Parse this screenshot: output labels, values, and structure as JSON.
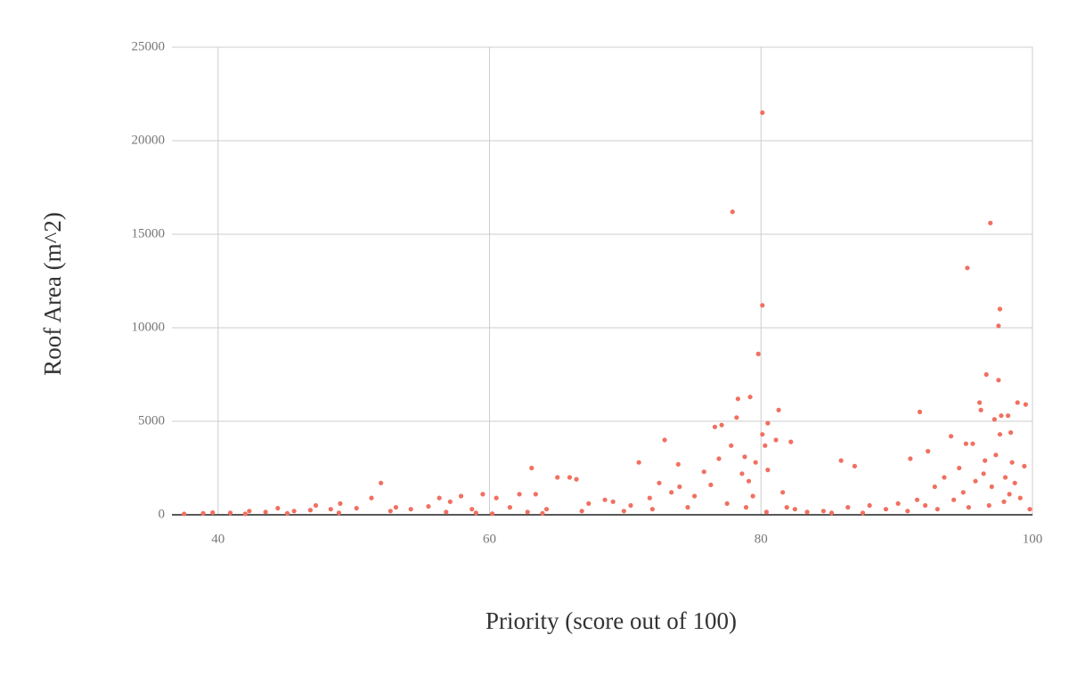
{
  "chart_data": {
    "type": "scatter",
    "x_label": "Priority (score out of 100)",
    "y_label": "Roof Area (m^2)",
    "color": "#f07060",
    "xlim": [
      36.6,
      100
    ],
    "xticks": [
      40,
      60,
      80,
      100
    ],
    "ylim": [
      0,
      25000
    ],
    "yticks": [
      0,
      5000,
      10000,
      15000,
      20000,
      25000
    ],
    "grid": true,
    "x": [
      80.1,
      77.9,
      96.9,
      95.2,
      80.1,
      97.6,
      97.5,
      79.8,
      96.6,
      97.5,
      79.2,
      78.3,
      96.1,
      98.9,
      99.5,
      81.3,
      96.2,
      91.7,
      97.7,
      98.2,
      78.2,
      97.2,
      80.5,
      77.1,
      76.6,
      80.1,
      97.6,
      98.4,
      94.0,
      81.1,
      82.2,
      72.9,
      95.1,
      95.6,
      80.3,
      77.8,
      92.3,
      91.0,
      76.9,
      78.8,
      85.9,
      86.9,
      73.9,
      71.0,
      63.1,
      97.3,
      96.5,
      98.5,
      94.6,
      99.4,
      79.6,
      80.5,
      75.8,
      65.9,
      65.0,
      66.4,
      52.0,
      72.5,
      74.0,
      62.2,
      63.4,
      59.5,
      60.5,
      57.9,
      56.3,
      51.3,
      57.1,
      49.0,
      47.2,
      44.4,
      42.3,
      40.9,
      38.9,
      37.5,
      39.6,
      43.5,
      45.6,
      46.8,
      48.3,
      50.2,
      53.1,
      54.2,
      55.5,
      58.7,
      61.5,
      64.2,
      67.3,
      68.5,
      69.1,
      70.4,
      71.8,
      73.4,
      75.1,
      76.3,
      78.6,
      79.1,
      81.6,
      82.5,
      83.4,
      84.6,
      86.4,
      88.0,
      89.2,
      90.1,
      91.5,
      92.8,
      93.5,
      94.9,
      95.8,
      96.4,
      97.0,
      98.0,
      98.7,
      99.1,
      99.8,
      96.8,
      93.0,
      90.8,
      87.5,
      85.2,
      81.9,
      79.4,
      77.5,
      74.6,
      72.0,
      66.8,
      62.8,
      59.0,
      56.8,
      52.7,
      48.9,
      45.1,
      42.0,
      60.2,
      63.9,
      69.9,
      78.9,
      80.4,
      95.3,
      97.9,
      98.3,
      94.2,
      92.1
    ],
    "values": [
      21500,
      16200,
      15600,
      13200,
      11200,
      11000,
      10100,
      8600,
      7500,
      7200,
      6300,
      6200,
      6000,
      6000,
      5900,
      5600,
      5600,
      5500,
      5300,
      5300,
      5200,
      5100,
      4900,
      4800,
      4700,
      4300,
      4300,
      4400,
      4200,
      4000,
      3900,
      4000,
      3800,
      3800,
      3700,
      3700,
      3400,
      3000,
      3000,
      3100,
      2900,
      2600,
      2700,
      2800,
      2500,
      3200,
      2900,
      2800,
      2500,
      2600,
      2800,
      2400,
      2300,
      2000,
      2000,
      1900,
      1700,
      1700,
      1500,
      1100,
      1100,
      1100,
      900,
      1000,
      900,
      900,
      700,
      600,
      500,
      350,
      200,
      100,
      80,
      50,
      120,
      150,
      200,
      250,
      300,
      350,
      400,
      300,
      450,
      300,
      400,
      300,
      600,
      800,
      700,
      500,
      900,
      1200,
      1000,
      1600,
      2200,
      1800,
      1200,
      300,
      150,
      200,
      400,
      500,
      300,
      600,
      800,
      1500,
      2000,
      1200,
      1800,
      2200,
      1500,
      2000,
      1700,
      900,
      300,
      500,
      300,
      200,
      100,
      100,
      400,
      1000,
      600,
      400,
      300,
      200,
      150,
      100,
      150,
      200,
      100,
      80,
      50,
      60,
      80,
      200,
      400,
      150,
      400,
      700,
      1100,
      800,
      500
    ]
  }
}
